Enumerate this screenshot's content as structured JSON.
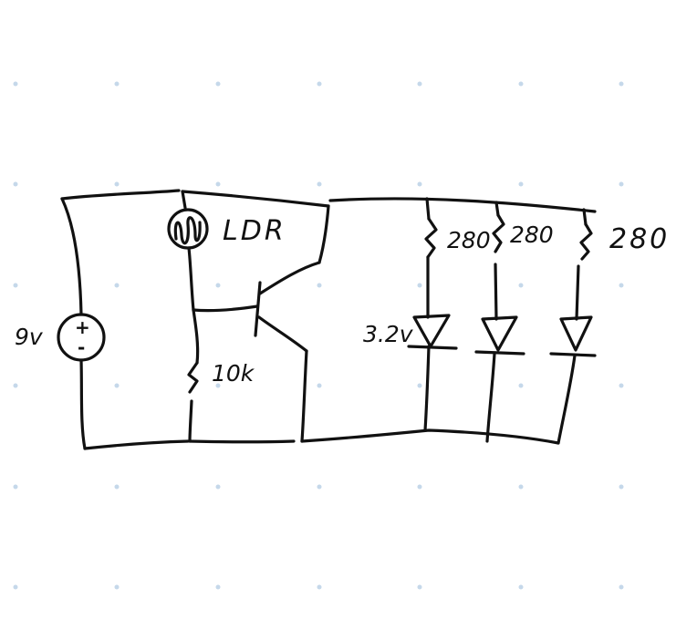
{
  "diagram": {
    "source": {
      "label": "9v",
      "plus": "+",
      "minus": "-"
    },
    "ldr": {
      "label": "LDR"
    },
    "base_resistor": {
      "label": "10k"
    },
    "led_resistors": [
      {
        "label": "280"
      },
      {
        "label": "280"
      },
      {
        "label": "280"
      }
    ],
    "led_voltage": {
      "label": "3.2v"
    },
    "colors": {
      "ink": "#111111",
      "grid_dot": "#c5d8ea",
      "background": "#ffffff"
    }
  }
}
